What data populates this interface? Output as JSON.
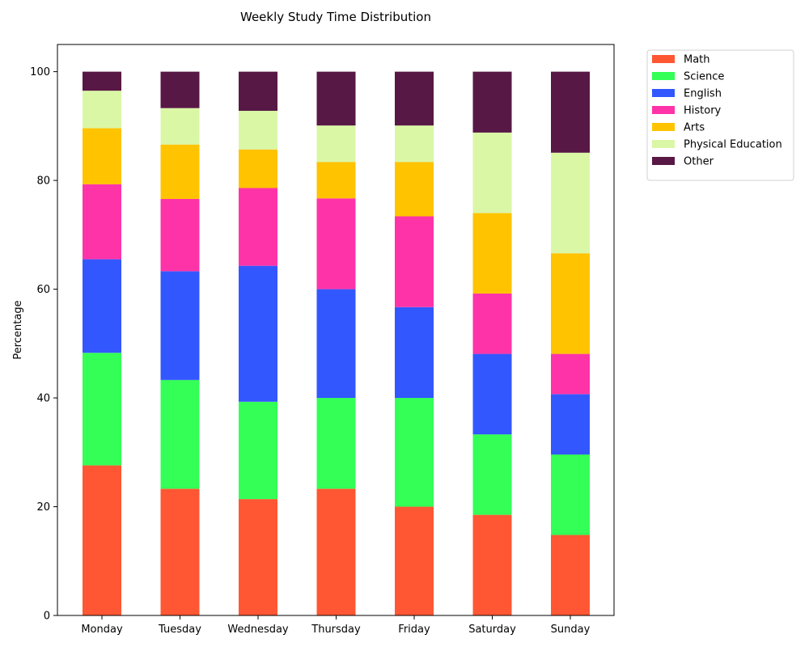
{
  "chart_data": {
    "type": "bar",
    "stacked": true,
    "title": "Weekly Study Time Distribution",
    "xlabel": "",
    "ylabel": "Percentage",
    "ylim": [
      0,
      105
    ],
    "yticks": [
      0,
      20,
      40,
      60,
      80,
      100
    ],
    "grid": false,
    "legend_position": "outside-top-right",
    "categories": [
      "Monday",
      "Tuesday",
      "Wednesday",
      "Thursday",
      "Friday",
      "Saturday",
      "Sunday"
    ],
    "series": [
      {
        "name": "Math",
        "color": "#ff5733",
        "values": [
          27.6,
          23.3,
          21.4,
          23.3,
          20.0,
          18.5,
          14.8
        ]
      },
      {
        "name": "Science",
        "color": "#33ff57",
        "values": [
          20.7,
          20.0,
          17.9,
          16.7,
          20.0,
          14.8,
          14.8
        ]
      },
      {
        "name": "English",
        "color": "#3357ff",
        "values": [
          17.2,
          20.0,
          25.0,
          20.0,
          16.7,
          14.8,
          11.1
        ]
      },
      {
        "name": "History",
        "color": "#ff33a8",
        "values": [
          13.8,
          13.3,
          14.3,
          16.7,
          16.7,
          11.1,
          7.4
        ]
      },
      {
        "name": "Arts",
        "color": "#ffc300",
        "values": [
          10.3,
          10.0,
          7.1,
          6.7,
          10.0,
          14.8,
          18.5
        ]
      },
      {
        "name": "Physical Education",
        "color": "#daf7a6",
        "values": [
          6.9,
          6.7,
          7.1,
          6.7,
          6.7,
          14.8,
          18.5
        ]
      },
      {
        "name": "Other",
        "color": "#581845",
        "values": [
          3.5,
          6.7,
          7.2,
          9.9,
          9.9,
          11.2,
          14.9
        ]
      }
    ]
  }
}
